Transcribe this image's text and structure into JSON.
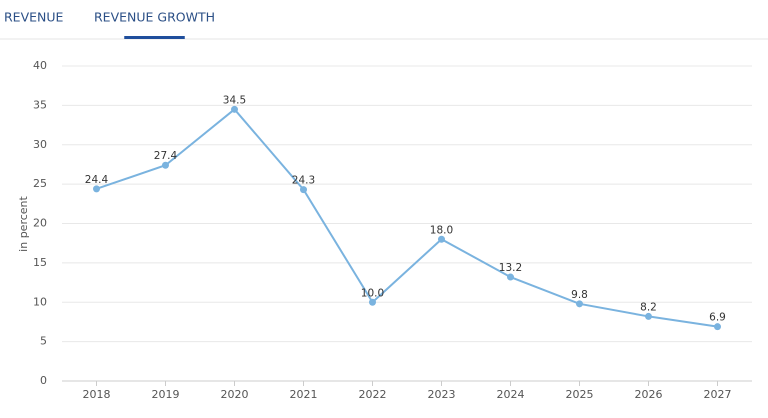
{
  "tabs": [
    "REVENUE",
    "REVENUE GROWTH"
  ],
  "active_tab": 1,
  "chart_data": {
    "type": "line",
    "y_label": "in percent",
    "categories": [
      "2018",
      "2019",
      "2020",
      "2021",
      "2022",
      "2023",
      "2024",
      "2025",
      "2026",
      "2027"
    ],
    "values": [
      24.4,
      27.4,
      34.5,
      24.3,
      10.0,
      18.0,
      13.2,
      9.8,
      8.2,
      6.9
    ],
    "value_labels": [
      "24.4",
      "27.4",
      "34.5",
      "24.3",
      "10.0",
      "18.0",
      "13.2",
      "9.8",
      "8.2",
      "6.9"
    ],
    "color": "#7ab3df",
    "ylim": [
      0,
      40
    ],
    "yticks": [
      0,
      5,
      10,
      15,
      20,
      25,
      30,
      35,
      40
    ],
    "grid": true
  }
}
